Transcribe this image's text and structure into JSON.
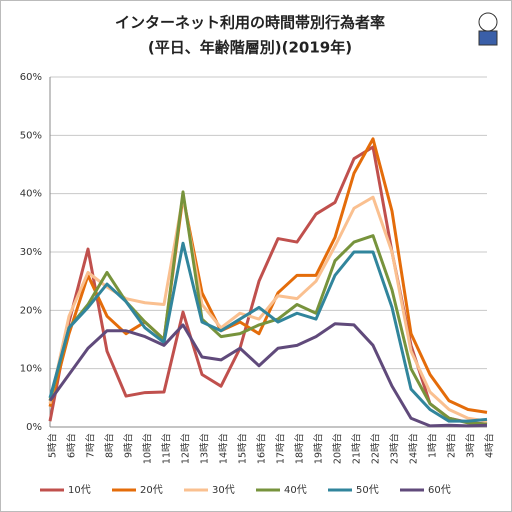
{
  "chart_data": {
    "type": "line",
    "title": "インターネット利用の時間帯別行為者率",
    "subtitle": "(平日、年齢階層別)(2019年)",
    "categories": [
      "5時台",
      "6時台",
      "7時台",
      "8時台",
      "9時台",
      "10時台",
      "11時台",
      "12時台",
      "13時台",
      "14時台",
      "15時台",
      "16時台",
      "17時台",
      "18時台",
      "19時台",
      "20時台",
      "21時台",
      "22時台",
      "23時台",
      "24時台",
      "1時台",
      "2時台",
      "3時台",
      "4時台"
    ],
    "series": [
      {
        "name": "10代",
        "color": "#c0504d",
        "values": [
          1,
          18,
          30.5,
          13,
          5.3,
          5.9,
          6,
          19.7,
          9,
          7,
          13.5,
          25,
          32.3,
          31.7,
          36.5,
          38.5,
          46,
          48,
          30,
          14,
          4,
          1.5,
          0.8,
          0.5
        ]
      },
      {
        "name": "20代",
        "color": "#e46c0a",
        "values": [
          3.5,
          16,
          26,
          19,
          16,
          18,
          15,
          39.5,
          23,
          16.5,
          18,
          16,
          23,
          26,
          26,
          32.5,
          43.5,
          49.4,
          37,
          16,
          9,
          4.5,
          3,
          2.5
        ]
      },
      {
        "name": "30代",
        "color": "#fac090",
        "values": [
          4,
          19,
          26.5,
          24,
          22,
          21.3,
          21,
          39.5,
          21,
          17,
          19.5,
          18.5,
          22.5,
          22,
          25,
          31,
          37.5,
          39.4,
          30,
          13,
          6,
          3,
          1.5,
          1
        ]
      },
      {
        "name": "40代",
        "color": "#77933c",
        "values": [
          4.5,
          17,
          21,
          26.5,
          21.5,
          18,
          15,
          40.3,
          18.5,
          15.5,
          16,
          17.5,
          18.5,
          21,
          19.5,
          28.5,
          31.7,
          32.8,
          23.5,
          10,
          4,
          1.5,
          0.7,
          0.5
        ]
      },
      {
        "name": "50代",
        "color": "#31859c",
        "values": [
          5,
          17,
          20.5,
          24.5,
          21.5,
          17,
          14.5,
          31.5,
          18,
          16.5,
          18.5,
          20.5,
          18,
          19.5,
          18.5,
          26,
          30,
          30,
          20.5,
          6.5,
          3,
          1,
          1,
          1.3
        ]
      },
      {
        "name": "60代",
        "color": "#604a7b",
        "values": [
          4.5,
          9,
          13.5,
          16.5,
          16.5,
          15.5,
          14,
          17.5,
          12,
          11.5,
          13.5,
          10.5,
          13.5,
          14,
          15.5,
          17.7,
          17.5,
          14,
          7,
          1.5,
          0.2,
          0.3,
          0.2,
          0.3
        ]
      }
    ],
    "ylim": [
      0,
      60
    ],
    "yticks": [
      {
        "value": 0,
        "label": "0%"
      },
      {
        "value": 10,
        "label": "10%"
      },
      {
        "value": 20,
        "label": "20%"
      },
      {
        "value": 30,
        "label": "30%"
      },
      {
        "value": 40,
        "label": "40%"
      },
      {
        "value": 50,
        "label": "50%"
      },
      {
        "value": 60,
        "label": "60%"
      }
    ],
    "grid": true,
    "legend": "bottom"
  }
}
